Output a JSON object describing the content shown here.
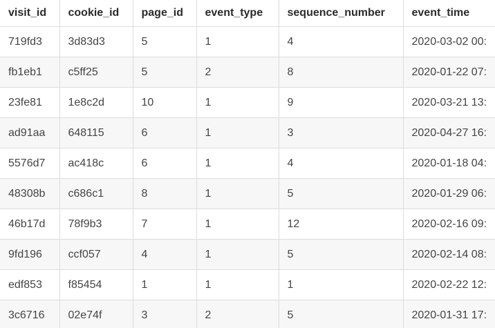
{
  "table": {
    "columns": [
      "visit_id",
      "cookie_id",
      "page_id",
      "event_type",
      "sequence_number",
      "event_time"
    ],
    "rows": [
      [
        "719fd3",
        "3d83d3",
        "5",
        "1",
        "4",
        "2020-03-02 00:"
      ],
      [
        "fb1eb1",
        "c5ff25",
        "5",
        "2",
        "8",
        "2020-01-22 07:"
      ],
      [
        "23fe81",
        "1e8c2d",
        "10",
        "1",
        "9",
        "2020-03-21 13:"
      ],
      [
        "ad91aa",
        "648115",
        "6",
        "1",
        "3",
        "2020-04-27 16:"
      ],
      [
        "5576d7",
        "ac418c",
        "6",
        "1",
        "4",
        "2020-01-18 04:"
      ],
      [
        "48308b",
        "c686c1",
        "8",
        "1",
        "5",
        "2020-01-29 06:"
      ],
      [
        "46b17d",
        "78f9b3",
        "7",
        "1",
        "12",
        "2020-02-16 09:"
      ],
      [
        "9fd196",
        "ccf057",
        "4",
        "1",
        "5",
        "2020-02-14 08:"
      ],
      [
        "edf853",
        "f85454",
        "1",
        "1",
        "1",
        "2020-02-22 12:"
      ],
      [
        "3c6716",
        "02e74f",
        "3",
        "2",
        "5",
        "2020-01-31 17:"
      ]
    ]
  }
}
